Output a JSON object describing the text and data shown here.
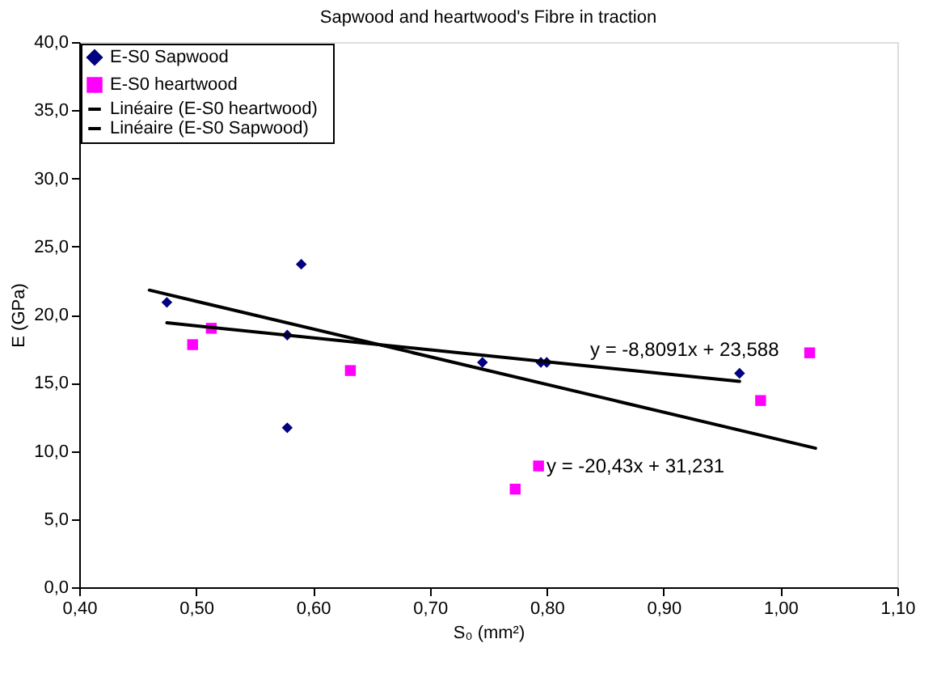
{
  "chart_data": {
    "type": "scatter",
    "title": "Sapwood and heartwood's Fibre in traction",
    "xlabel": "S₀ (mm²)",
    "ylabel": "E (GPa)",
    "series": [
      {
        "name": "E-S0  Sapwood",
        "color": "#000080",
        "marker": "diamond",
        "x": [
          0.475,
          0.578,
          0.578,
          0.59,
          0.745,
          0.795,
          0.8,
          0.965
        ],
        "values": [
          20.9,
          18.5,
          11.7,
          23.7,
          16.5,
          16.5,
          16.5,
          15.7
        ]
      },
      {
        "name": "E-S0   heartwood",
        "color": "#ff00ff",
        "marker": "square",
        "x": [
          0.497,
          0.513,
          0.632,
          0.773,
          0.793,
          0.983,
          1.025
        ],
        "values": [
          17.8,
          19.0,
          15.9,
          7.2,
          8.9,
          13.7,
          17.2
        ]
      },
      {
        "name": "Linéaire (E-S0   heartwood)",
        "type": "line",
        "color": "#000000",
        "x": [
          0.46,
          1.03
        ],
        "values": [
          21.8,
          10.2
        ]
      },
      {
        "name": "Linéaire (E-S0  Sapwood)",
        "type": "line",
        "color": "#000000",
        "x": [
          0.475,
          0.965
        ],
        "values": [
          19.4,
          15.1
        ]
      }
    ],
    "xlim": [
      0.4,
      1.1
    ],
    "xticks": [
      {
        "value": 0.4,
        "label": "0,40"
      },
      {
        "value": 0.5,
        "label": "0,50"
      },
      {
        "value": 0.6,
        "label": "0,60"
      },
      {
        "value": 0.7,
        "label": "0,70"
      },
      {
        "value": 0.8,
        "label": "0,80"
      },
      {
        "value": 0.9,
        "label": "0,90"
      },
      {
        "value": 1.0,
        "label": "1,00"
      },
      {
        "value": 1.1,
        "label": "1,10"
      }
    ],
    "ylim": [
      0,
      40
    ],
    "yticks": [
      {
        "value": 0,
        "label": "0,0"
      },
      {
        "value": 5,
        "label": "5,0"
      },
      {
        "value": 10,
        "label": "10,0"
      },
      {
        "value": 15,
        "label": "15,0"
      },
      {
        "value": 20,
        "label": "20,0"
      },
      {
        "value": 25,
        "label": "25,0"
      },
      {
        "value": 30,
        "label": "30,0"
      },
      {
        "value": 35,
        "label": "35,0"
      },
      {
        "value": 40,
        "label": "40,0"
      }
    ],
    "annotations": [
      "y = -8,8091x + 23,588",
      "y = -20,43x + 31,231"
    ],
    "grid": false,
    "legend": "top left"
  }
}
